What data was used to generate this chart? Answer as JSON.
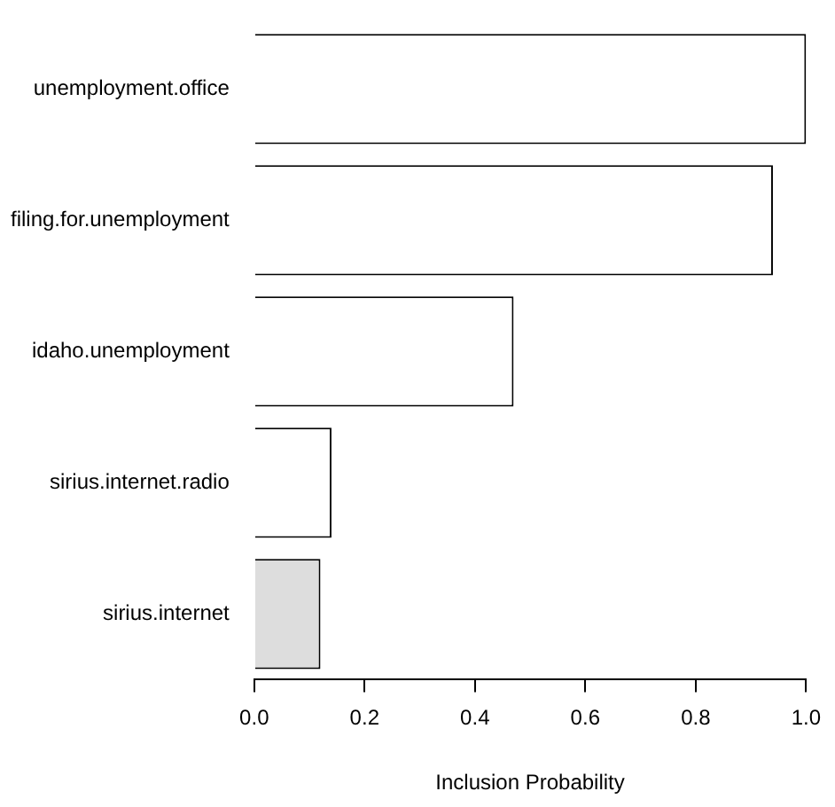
{
  "chart_data": {
    "type": "bar",
    "orientation": "horizontal",
    "xlabel": "Inclusion Probability",
    "categories": [
      "unemployment.office",
      "filing.for.unemployment",
      "idaho.unemployment",
      "sirius.internet.radio",
      "sirius.internet"
    ],
    "values": [
      1.0,
      0.94,
      0.47,
      0.14,
      0.12
    ],
    "colors": [
      "#ffffff",
      "#ffffff",
      "#ffffff",
      "#ffffff",
      "#dddddd"
    ],
    "xlim": [
      0,
      1
    ],
    "xticks": [
      {
        "value": 0,
        "label": "0.0"
      },
      {
        "value": 0.2,
        "label": "0.2"
      },
      {
        "value": 0.4,
        "label": "0.4"
      },
      {
        "value": 0.6,
        "label": "0.6"
      },
      {
        "value": 0.8,
        "label": "0.8"
      },
      {
        "value": 1,
        "label": "1.0"
      }
    ],
    "grid": false,
    "legend": false
  }
}
